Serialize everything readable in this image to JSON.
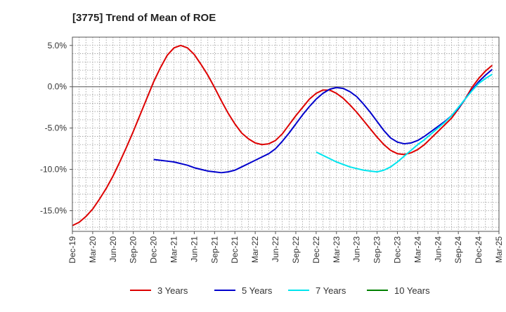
{
  "chart_data": {
    "type": "line",
    "title": "[3775]  Trend of Mean of ROE",
    "xlabel": "",
    "ylabel": "",
    "ylim": [
      -17.5,
      6.0
    ],
    "yticks": [
      5.0,
      0.0,
      -5.0,
      -10.0,
      -15.0
    ],
    "ytick_labels": [
      "5.0%",
      "0.0%",
      "-5.0%",
      "-10.0%",
      "-15.0%"
    ],
    "xlim": [
      "Dec-19",
      "Mar-25"
    ],
    "xtick_labels": [
      "Dec-19",
      "Mar-20",
      "Jun-20",
      "Sep-20",
      "Dec-20",
      "Mar-21",
      "Jun-21",
      "Sep-21",
      "Dec-21",
      "Mar-22",
      "Jun-22",
      "Sep-22",
      "Dec-22",
      "Mar-23",
      "Jun-23",
      "Sep-23",
      "Dec-23",
      "Mar-24",
      "Jun-24",
      "Sep-24",
      "Dec-24",
      "Mar-25"
    ],
    "grid": true,
    "legend_position": "bottom",
    "series": [
      {
        "name": "3 Years",
        "color": "#dd0000",
        "points": [
          [
            "Dec-19",
            -16.8
          ],
          [
            "Jan-20",
            -16.4
          ],
          [
            "Feb-20",
            -15.7
          ],
          [
            "Mar-20",
            -14.8
          ],
          [
            "Apr-20",
            -13.6
          ],
          [
            "May-20",
            -12.3
          ],
          [
            "Jun-20",
            -10.8
          ],
          [
            "Jul-20",
            -9.1
          ],
          [
            "Aug-20",
            -7.3
          ],
          [
            "Sep-20",
            -5.4
          ],
          [
            "Oct-20",
            -3.4
          ],
          [
            "Nov-20",
            -1.4
          ],
          [
            "Dec-20",
            0.6
          ],
          [
            "Jan-21",
            2.3
          ],
          [
            "Feb-21",
            3.8
          ],
          [
            "Mar-21",
            4.7
          ],
          [
            "Apr-21",
            5.0
          ],
          [
            "May-21",
            4.7
          ],
          [
            "Jun-21",
            3.9
          ],
          [
            "Jul-21",
            2.7
          ],
          [
            "Aug-21",
            1.4
          ],
          [
            "Sep-21",
            -0.1
          ],
          [
            "Oct-21",
            -1.7
          ],
          [
            "Nov-21",
            -3.2
          ],
          [
            "Dec-21",
            -4.5
          ],
          [
            "Jan-22",
            -5.6
          ],
          [
            "Feb-22",
            -6.3
          ],
          [
            "Mar-22",
            -6.8
          ],
          [
            "Apr-22",
            -7.0
          ],
          [
            "May-22",
            -6.9
          ],
          [
            "Jun-22",
            -6.5
          ],
          [
            "Jul-22",
            -5.7
          ],
          [
            "Aug-22",
            -4.6
          ],
          [
            "Sep-22",
            -3.5
          ],
          [
            "Oct-22",
            -2.5
          ],
          [
            "Nov-22",
            -1.5
          ],
          [
            "Dec-22",
            -0.8
          ],
          [
            "Jan-23",
            -0.4
          ],
          [
            "Feb-23",
            -0.4
          ],
          [
            "Mar-23",
            -0.8
          ],
          [
            "Apr-23",
            -1.4
          ],
          [
            "May-23",
            -2.2
          ],
          [
            "Jun-23",
            -3.1
          ],
          [
            "Jul-23",
            -4.1
          ],
          [
            "Aug-23",
            -5.1
          ],
          [
            "Sep-23",
            -6.1
          ],
          [
            "Oct-23",
            -7.0
          ],
          [
            "Nov-23",
            -7.7
          ],
          [
            "Dec-23",
            -8.1
          ],
          [
            "Jan-24",
            -8.2
          ],
          [
            "Feb-24",
            -8.0
          ],
          [
            "Mar-24",
            -7.6
          ],
          [
            "Apr-24",
            -7.0
          ],
          [
            "May-24",
            -6.2
          ],
          [
            "Jun-24",
            -5.4
          ],
          [
            "Jul-24",
            -4.6
          ],
          [
            "Aug-24",
            -3.8
          ],
          [
            "Sep-24",
            -2.7
          ],
          [
            "Oct-24",
            -1.5
          ],
          [
            "Nov-24",
            -0.1
          ],
          [
            "Dec-24",
            1.0
          ],
          [
            "Jan-25",
            1.9
          ],
          [
            "Feb-25",
            2.6
          ]
        ]
      },
      {
        "name": "5 Years",
        "color": "#0000cc",
        "points": [
          [
            "Dec-20",
            -8.8
          ],
          [
            "Jan-21",
            -8.9
          ],
          [
            "Feb-21",
            -9.0
          ],
          [
            "Mar-21",
            -9.1
          ],
          [
            "Apr-21",
            -9.3
          ],
          [
            "May-21",
            -9.5
          ],
          [
            "Jun-21",
            -9.8
          ],
          [
            "Jul-21",
            -10.0
          ],
          [
            "Aug-21",
            -10.2
          ],
          [
            "Sep-21",
            -10.3
          ],
          [
            "Oct-21",
            -10.4
          ],
          [
            "Nov-21",
            -10.3
          ],
          [
            "Dec-21",
            -10.1
          ],
          [
            "Jan-22",
            -9.7
          ],
          [
            "Feb-22",
            -9.3
          ],
          [
            "Mar-22",
            -8.9
          ],
          [
            "Apr-22",
            -8.5
          ],
          [
            "May-22",
            -8.1
          ],
          [
            "Jun-22",
            -7.5
          ],
          [
            "Jul-22",
            -6.6
          ],
          [
            "Aug-22",
            -5.6
          ],
          [
            "Sep-22",
            -4.5
          ],
          [
            "Oct-22",
            -3.4
          ],
          [
            "Nov-22",
            -2.4
          ],
          [
            "Dec-22",
            -1.5
          ],
          [
            "Jan-23",
            -0.8
          ],
          [
            "Feb-23",
            -0.3
          ],
          [
            "Mar-23",
            -0.1
          ],
          [
            "Apr-23",
            -0.2
          ],
          [
            "May-23",
            -0.6
          ],
          [
            "Jun-23",
            -1.2
          ],
          [
            "Jul-23",
            -2.1
          ],
          [
            "Aug-23",
            -3.1
          ],
          [
            "Sep-23",
            -4.2
          ],
          [
            "Oct-23",
            -5.3
          ],
          [
            "Nov-23",
            -6.2
          ],
          [
            "Dec-23",
            -6.7
          ],
          [
            "Jan-24",
            -6.9
          ],
          [
            "Feb-24",
            -6.8
          ],
          [
            "Mar-24",
            -6.5
          ],
          [
            "Apr-24",
            -6.0
          ],
          [
            "May-24",
            -5.4
          ],
          [
            "Jun-24",
            -4.8
          ],
          [
            "Jul-24",
            -4.2
          ],
          [
            "Aug-24",
            -3.5
          ],
          [
            "Sep-24",
            -2.6
          ],
          [
            "Oct-24",
            -1.5
          ],
          [
            "Nov-24",
            -0.4
          ],
          [
            "Dec-24",
            0.6
          ],
          [
            "Jan-25",
            1.4
          ],
          [
            "Feb-25",
            2.1
          ]
        ]
      },
      {
        "name": "7 Years",
        "color": "#00e5ee",
        "points": [
          [
            "Dec-22",
            -7.9
          ],
          [
            "Jan-23",
            -8.3
          ],
          [
            "Feb-23",
            -8.7
          ],
          [
            "Mar-23",
            -9.1
          ],
          [
            "Apr-23",
            -9.4
          ],
          [
            "May-23",
            -9.7
          ],
          [
            "Jun-23",
            -9.9
          ],
          [
            "Jul-23",
            -10.1
          ],
          [
            "Aug-23",
            -10.2
          ],
          [
            "Sep-23",
            -10.3
          ],
          [
            "Oct-23",
            -10.1
          ],
          [
            "Nov-23",
            -9.7
          ],
          [
            "Dec-23",
            -9.1
          ],
          [
            "Jan-24",
            -8.4
          ],
          [
            "Feb-24",
            -7.7
          ],
          [
            "Mar-24",
            -7.0
          ],
          [
            "Apr-24",
            -6.4
          ],
          [
            "May-24",
            -5.7
          ],
          [
            "Jun-24",
            -5.0
          ],
          [
            "Jul-24",
            -4.3
          ],
          [
            "Aug-24",
            -3.5
          ],
          [
            "Sep-24",
            -2.5
          ],
          [
            "Oct-24",
            -1.5
          ],
          [
            "Nov-24",
            -0.5
          ],
          [
            "Dec-24",
            0.4
          ],
          [
            "Jan-25",
            1.0
          ],
          [
            "Feb-25",
            1.5
          ]
        ]
      },
      {
        "name": "10 Years",
        "color": "#008000",
        "points": []
      }
    ]
  }
}
